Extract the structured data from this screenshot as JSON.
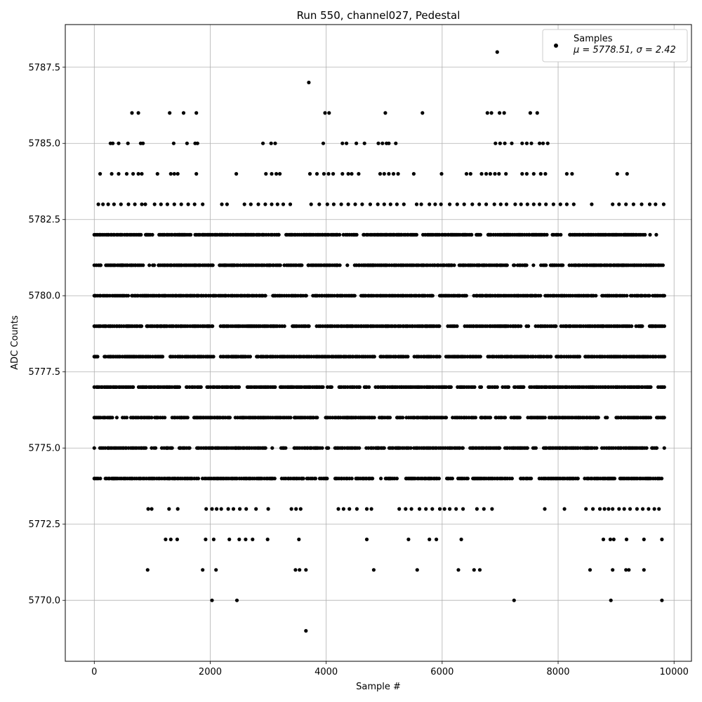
{
  "chart_data": {
    "type": "scatter",
    "title": "Run 550, channel027, Pedestal",
    "xlabel": "Sample #",
    "ylabel": "ADC Counts",
    "xlim": [
      -500,
      10300
    ],
    "ylim": [
      5768.0,
      5788.9
    ],
    "xticks": [
      0,
      2000,
      4000,
      6000,
      8000,
      10000
    ],
    "yticks": [
      5770.0,
      5772.5,
      5775.0,
      5777.5,
      5780.0,
      5782.5,
      5785.0,
      5787.5
    ],
    "xtick_labels": [
      "0",
      "2000",
      "4000",
      "6000",
      "8000",
      "10000"
    ],
    "ytick_labels": [
      "5770.0",
      "5772.5",
      "5775.0",
      "5777.5",
      "5780.0",
      "5782.5",
      "5785.0",
      "5787.5"
    ],
    "grid": true,
    "legend_position": "top-right",
    "series": [
      {
        "name": "Samples",
        "color": "#000000",
        "summary": "μ = 5778.51, σ = 2.42",
        "dense_levels": [
          {
            "y": 5782,
            "x_range": [
              0,
              9700
            ]
          },
          {
            "y": 5781,
            "x_range": [
              0,
              9850
            ]
          },
          {
            "y": 5780,
            "x_range": [
              0,
              9850
            ]
          },
          {
            "y": 5779,
            "x_range": [
              0,
              9850
            ]
          },
          {
            "y": 5778,
            "x_range": [
              0,
              9850
            ]
          },
          {
            "y": 5777,
            "x_range": [
              0,
              9850
            ]
          },
          {
            "y": 5776,
            "x_range": [
              0,
              9850
            ]
          },
          {
            "y": 5775,
            "x_range": [
              0,
              9850
            ]
          },
          {
            "y": 5774,
            "x_range": [
              0,
              9850
            ]
          }
        ],
        "points": [
          [
            6950,
            5788
          ],
          [
            3700,
            5787
          ],
          [
            3650,
            5769
          ],
          [
            650,
            5786
          ],
          [
            760,
            5786
          ],
          [
            1300,
            5786
          ],
          [
            1540,
            5786
          ],
          [
            1760,
            5786
          ],
          [
            3980,
            5786
          ],
          [
            4050,
            5786
          ],
          [
            5020,
            5786
          ],
          [
            5660,
            5786
          ],
          [
            6780,
            5786
          ],
          [
            6850,
            5786
          ],
          [
            6990,
            5786
          ],
          [
            7070,
            5786
          ],
          [
            7520,
            5786
          ],
          [
            7640,
            5786
          ],
          [
            280,
            5785
          ],
          [
            320,
            5785
          ],
          [
            420,
            5785
          ],
          [
            580,
            5785
          ],
          [
            800,
            5785
          ],
          [
            840,
            5785
          ],
          [
            1370,
            5785
          ],
          [
            1600,
            5785
          ],
          [
            1740,
            5785
          ],
          [
            1780,
            5785
          ],
          [
            2910,
            5785
          ],
          [
            3050,
            5785
          ],
          [
            3120,
            5785
          ],
          [
            3950,
            5785
          ],
          [
            4280,
            5785
          ],
          [
            4350,
            5785
          ],
          [
            4520,
            5785
          ],
          [
            4660,
            5785
          ],
          [
            4900,
            5785
          ],
          [
            4970,
            5785
          ],
          [
            5040,
            5785
          ],
          [
            5080,
            5785
          ],
          [
            5200,
            5785
          ],
          [
            6920,
            5785
          ],
          [
            7000,
            5785
          ],
          [
            7080,
            5785
          ],
          [
            7200,
            5785
          ],
          [
            7380,
            5785
          ],
          [
            7460,
            5785
          ],
          [
            7540,
            5785
          ],
          [
            7680,
            5785
          ],
          [
            7740,
            5785
          ],
          [
            7820,
            5785
          ],
          [
            100,
            5784
          ],
          [
            300,
            5784
          ],
          [
            420,
            5784
          ],
          [
            560,
            5784
          ],
          [
            670,
            5784
          ],
          [
            760,
            5784
          ],
          [
            820,
            5784
          ],
          [
            1090,
            5784
          ],
          [
            1320,
            5784
          ],
          [
            1380,
            5784
          ],
          [
            1440,
            5784
          ],
          [
            1760,
            5784
          ],
          [
            2450,
            5784
          ],
          [
            2960,
            5784
          ],
          [
            3060,
            5784
          ],
          [
            3140,
            5784
          ],
          [
            3200,
            5784
          ],
          [
            3720,
            5784
          ],
          [
            3840,
            5784
          ],
          [
            3960,
            5784
          ],
          [
            4040,
            5784
          ],
          [
            4120,
            5784
          ],
          [
            4280,
            5784
          ],
          [
            4380,
            5784
          ],
          [
            4440,
            5784
          ],
          [
            4560,
            5784
          ],
          [
            4930,
            5784
          ],
          [
            5000,
            5784
          ],
          [
            5080,
            5784
          ],
          [
            5160,
            5784
          ],
          [
            5240,
            5784
          ],
          [
            5510,
            5784
          ],
          [
            5990,
            5784
          ],
          [
            6420,
            5784
          ],
          [
            6490,
            5784
          ],
          [
            6680,
            5784
          ],
          [
            6760,
            5784
          ],
          [
            6830,
            5784
          ],
          [
            6910,
            5784
          ],
          [
            6980,
            5784
          ],
          [
            7100,
            5784
          ],
          [
            7380,
            5784
          ],
          [
            7460,
            5784
          ],
          [
            7580,
            5784
          ],
          [
            7700,
            5784
          ],
          [
            7780,
            5784
          ],
          [
            8150,
            5784
          ],
          [
            8240,
            5784
          ],
          [
            9020,
            5784
          ],
          [
            9190,
            5784
          ],
          [
            70,
            5783
          ],
          [
            150,
            5783
          ],
          [
            240,
            5783
          ],
          [
            340,
            5783
          ],
          [
            460,
            5783
          ],
          [
            590,
            5783
          ],
          [
            700,
            5783
          ],
          [
            820,
            5783
          ],
          [
            880,
            5783
          ],
          [
            1040,
            5783
          ],
          [
            1150,
            5783
          ],
          [
            1260,
            5783
          ],
          [
            1380,
            5783
          ],
          [
            1500,
            5783
          ],
          [
            1620,
            5783
          ],
          [
            1730,
            5783
          ],
          [
            1870,
            5783
          ],
          [
            2200,
            5783
          ],
          [
            2290,
            5783
          ],
          [
            2590,
            5783
          ],
          [
            2700,
            5783
          ],
          [
            2830,
            5783
          ],
          [
            2950,
            5783
          ],
          [
            3060,
            5783
          ],
          [
            3160,
            5783
          ],
          [
            3260,
            5783
          ],
          [
            3380,
            5783
          ],
          [
            3740,
            5783
          ],
          [
            3880,
            5783
          ],
          [
            4020,
            5783
          ],
          [
            4130,
            5783
          ],
          [
            4260,
            5783
          ],
          [
            4380,
            5783
          ],
          [
            4500,
            5783
          ],
          [
            4620,
            5783
          ],
          [
            4760,
            5783
          ],
          [
            4890,
            5783
          ],
          [
            5000,
            5783
          ],
          [
            5110,
            5783
          ],
          [
            5220,
            5783
          ],
          [
            5340,
            5783
          ],
          [
            5560,
            5783
          ],
          [
            5640,
            5783
          ],
          [
            5780,
            5783
          ],
          [
            5880,
            5783
          ],
          [
            5980,
            5783
          ],
          [
            6130,
            5783
          ],
          [
            6260,
            5783
          ],
          [
            6380,
            5783
          ],
          [
            6520,
            5783
          ],
          [
            6640,
            5783
          ],
          [
            6760,
            5783
          ],
          [
            6900,
            5783
          ],
          [
            7010,
            5783
          ],
          [
            7110,
            5783
          ],
          [
            7260,
            5783
          ],
          [
            7360,
            5783
          ],
          [
            7470,
            5783
          ],
          [
            7580,
            5783
          ],
          [
            7680,
            5783
          ],
          [
            7790,
            5783
          ],
          [
            7920,
            5783
          ],
          [
            8040,
            5783
          ],
          [
            8150,
            5783
          ],
          [
            8270,
            5783
          ],
          [
            8580,
            5783
          ],
          [
            8940,
            5783
          ],
          [
            9050,
            5783
          ],
          [
            9170,
            5783
          ],
          [
            9300,
            5783
          ],
          [
            9440,
            5783
          ],
          [
            9580,
            5783
          ],
          [
            9680,
            5783
          ],
          [
            9820,
            5783
          ],
          [
            930,
            5773
          ],
          [
            990,
            5773
          ],
          [
            1290,
            5773
          ],
          [
            1440,
            5773
          ],
          [
            1930,
            5773
          ],
          [
            2030,
            5773
          ],
          [
            2110,
            5773
          ],
          [
            2190,
            5773
          ],
          [
            2310,
            5773
          ],
          [
            2400,
            5773
          ],
          [
            2510,
            5773
          ],
          [
            2620,
            5773
          ],
          [
            2790,
            5773
          ],
          [
            3000,
            5773
          ],
          [
            3400,
            5773
          ],
          [
            3480,
            5773
          ],
          [
            3560,
            5773
          ],
          [
            4210,
            5773
          ],
          [
            4300,
            5773
          ],
          [
            4400,
            5773
          ],
          [
            4530,
            5773
          ],
          [
            4700,
            5773
          ],
          [
            4780,
            5773
          ],
          [
            5260,
            5773
          ],
          [
            5370,
            5773
          ],
          [
            5470,
            5773
          ],
          [
            5610,
            5773
          ],
          [
            5720,
            5773
          ],
          [
            5830,
            5773
          ],
          [
            5960,
            5773
          ],
          [
            6040,
            5773
          ],
          [
            6130,
            5773
          ],
          [
            6240,
            5773
          ],
          [
            6360,
            5773
          ],
          [
            6600,
            5773
          ],
          [
            6720,
            5773
          ],
          [
            6860,
            5773
          ],
          [
            7770,
            5773
          ],
          [
            8110,
            5773
          ],
          [
            8480,
            5773
          ],
          [
            8600,
            5773
          ],
          [
            8720,
            5773
          ],
          [
            8800,
            5773
          ],
          [
            8870,
            5773
          ],
          [
            8940,
            5773
          ],
          [
            9050,
            5773
          ],
          [
            9140,
            5773
          ],
          [
            9240,
            5773
          ],
          [
            9360,
            5773
          ],
          [
            9460,
            5773
          ],
          [
            9560,
            5773
          ],
          [
            9660,
            5773
          ],
          [
            9740,
            5773
          ],
          [
            1230,
            5772
          ],
          [
            1320,
            5772
          ],
          [
            1430,
            5772
          ],
          [
            1920,
            5772
          ],
          [
            2060,
            5772
          ],
          [
            2330,
            5772
          ],
          [
            2500,
            5772
          ],
          [
            2610,
            5772
          ],
          [
            2730,
            5772
          ],
          [
            2990,
            5772
          ],
          [
            3530,
            5772
          ],
          [
            4700,
            5772
          ],
          [
            5420,
            5772
          ],
          [
            5780,
            5772
          ],
          [
            5900,
            5772
          ],
          [
            6330,
            5772
          ],
          [
            8780,
            5772
          ],
          [
            8900,
            5772
          ],
          [
            8960,
            5772
          ],
          [
            9180,
            5772
          ],
          [
            9480,
            5772
          ],
          [
            9790,
            5772
          ],
          [
            920,
            5771
          ],
          [
            1870,
            5771
          ],
          [
            2100,
            5771
          ],
          [
            3470,
            5771
          ],
          [
            3540,
            5771
          ],
          [
            3650,
            5771
          ],
          [
            4820,
            5771
          ],
          [
            5570,
            5771
          ],
          [
            6280,
            5771
          ],
          [
            6550,
            5771
          ],
          [
            6650,
            5771
          ],
          [
            8550,
            5771
          ],
          [
            8940,
            5771
          ],
          [
            9170,
            5771
          ],
          [
            9220,
            5771
          ],
          [
            9480,
            5771
          ],
          [
            2030,
            5770
          ],
          [
            2460,
            5770
          ],
          [
            7240,
            5770
          ],
          [
            8910,
            5770
          ],
          [
            9790,
            5770
          ]
        ]
      }
    ]
  }
}
